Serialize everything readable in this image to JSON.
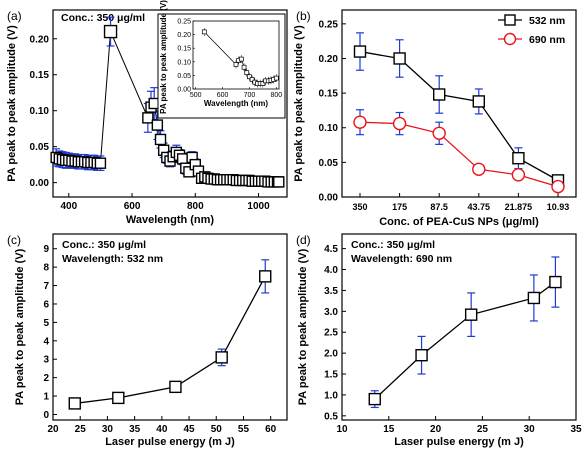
{
  "chart_data": [
    {
      "id": "a",
      "type": "scatter",
      "panel_label": "(a)",
      "annotation": "Conc.: 350 μg/ml",
      "xlabel": "Wavelength (nm)",
      "ylabel": "PA peak to peak amplitude (V)",
      "xlim": [
        350,
        1090
      ],
      "ylim": [
        -0.02,
        0.24
      ],
      "xticks": [
        400,
        600,
        800,
        1000
      ],
      "yticks": [
        0.0,
        0.05,
        0.1,
        0.15,
        0.2
      ],
      "xticklabels": [
        "400",
        "600",
        "800",
        "1000"
      ],
      "yticklabels": [
        "0.00",
        "0.05",
        "0.10",
        "0.15",
        "0.20"
      ],
      "x": [
        360,
        370,
        380,
        390,
        400,
        410,
        420,
        430,
        440,
        450,
        460,
        470,
        480,
        490,
        500,
        532,
        650,
        660,
        670,
        680,
        690,
        700,
        710,
        720,
        730,
        740,
        750,
        760,
        770,
        780,
        790,
        800,
        810,
        820,
        830,
        840,
        850,
        860,
        870,
        880,
        890,
        900,
        910,
        920,
        930,
        940,
        950,
        960,
        970,
        980,
        990,
        1000,
        1010,
        1020,
        1030,
        1040,
        1050,
        1060,
        1064
      ],
      "y": [
        0.035,
        0.033,
        0.032,
        0.031,
        0.031,
        0.03,
        0.03,
        0.029,
        0.029,
        0.029,
        0.028,
        0.028,
        0.028,
        0.027,
        0.027,
        0.21,
        0.09,
        0.105,
        0.11,
        0.08,
        0.06,
        0.045,
        0.035,
        0.03,
        0.036,
        0.042,
        0.038,
        0.033,
        0.02,
        0.015,
        0.035,
        0.025,
        0.016,
        0.006,
        0.008,
        0.006,
        0.005,
        0.005,
        0.004,
        0.004,
        0.004,
        0.004,
        0.004,
        0.004,
        0.003,
        0.003,
        0.003,
        0.003,
        0.003,
        0.002,
        0.002,
        0.002,
        0.002,
        0.002,
        0.001,
        0.001,
        0.001,
        0.001,
        0.001
      ],
      "err": [
        0.012,
        0.011,
        0.011,
        0.011,
        0.01,
        0.01,
        0.01,
        0.01,
        0.01,
        0.01,
        0.01,
        0.01,
        0.01,
        0.01,
        0.01,
        0.02,
        0.02,
        0.022,
        0.022,
        0.02,
        0.012,
        0.01,
        0.008,
        0.008,
        0.008,
        0.01,
        0.008,
        0.008,
        0.008,
        0.006,
        0.008,
        0.008,
        0.006,
        0.006,
        0.006,
        0.006,
        0.005,
        0.005,
        0.005,
        0.005,
        0.005,
        0.005,
        0.005,
        0.005,
        0.005,
        0.005,
        0.005,
        0.005,
        0.005,
        0.005,
        0.005,
        0.005,
        0.005,
        0.005,
        0.005,
        0.005,
        0.005,
        0.005,
        0.005
      ],
      "inset": {
        "xlabel": "Wavelength (nm)",
        "ylabel": "PA peak to peak amplitude (V)",
        "xlim": [
          490,
          810
        ],
        "ylim": [
          0.0,
          0.25
        ],
        "xticks": [
          500,
          600,
          700,
          800
        ],
        "yticks": [
          0.0,
          0.05,
          0.1,
          0.15,
          0.2,
          0.25
        ],
        "xticklabels": [
          "500",
          "600",
          "700",
          "800"
        ],
        "yticklabels": [
          "0.00",
          "0.05",
          "0.10",
          "0.15",
          "0.20",
          "0.25"
        ],
        "x": [
          532,
          650,
          660,
          670,
          680,
          690,
          700,
          710,
          720,
          730,
          740,
          750,
          760,
          770,
          780,
          790,
          800
        ],
        "y": [
          0.21,
          0.09,
          0.105,
          0.11,
          0.08,
          0.06,
          0.045,
          0.035,
          0.025,
          0.02,
          0.02,
          0.02,
          0.03,
          0.03,
          0.032,
          0.035,
          0.04
        ]
      }
    },
    {
      "id": "b",
      "type": "line",
      "panel_label": "(b)",
      "xlabel": "Conc. of PEA-CuS NPs (μg/ml)",
      "ylabel": "PA peak to peak amplitude (V)",
      "categories": [
        "350",
        "175",
        "87.5",
        "43.75",
        "21.875",
        "10.93"
      ],
      "ylim": [
        0.0,
        0.27
      ],
      "yticks": [
        0.0,
        0.05,
        0.1,
        0.15,
        0.2,
        0.25
      ],
      "yticklabels": [
        "0.00",
        "0.05",
        "0.10",
        "0.15",
        "0.20",
        "0.25"
      ],
      "legend_position": "top-right",
      "series": [
        {
          "name": "532 nm",
          "color": "#000000",
          "marker": "square",
          "values": [
            0.21,
            0.2,
            0.148,
            0.138,
            0.056,
            0.024
          ],
          "err": [
            0.027,
            0.027,
            0.027,
            0.018,
            0.015,
            0.005
          ]
        },
        {
          "name": "690 nm",
          "color": "#e8141b",
          "marker": "circle",
          "values": [
            0.108,
            0.106,
            0.092,
            0.04,
            0.032,
            0.015
          ],
          "err": [
            0.018,
            0.016,
            0.016,
            0.006,
            0.006,
            0.005
          ]
        }
      ]
    },
    {
      "id": "c",
      "type": "line",
      "panel_label": "(c)",
      "annotation": "Conc.: 350 μg/ml",
      "annotation2": "Wavelength: 532 nm",
      "xlabel": "Laser  pulse energy (m J)",
      "ylabel": "PA peak to peak amplitude (V)",
      "xlim": [
        20,
        63
      ],
      "ylim": [
        -0.3,
        9.8
      ],
      "xticks": [
        20,
        25,
        30,
        35,
        40,
        45,
        50,
        55,
        60
      ],
      "yticks": [
        0,
        1,
        2,
        3,
        4,
        5,
        6,
        7,
        8,
        9
      ],
      "xticklabels": [
        "20",
        "25",
        "30",
        "35",
        "40",
        "45",
        "50",
        "55",
        "60"
      ],
      "yticklabels": [
        "0",
        "1",
        "2",
        "3",
        "4",
        "5",
        "6",
        "7",
        "8",
        "9"
      ],
      "x": [
        24,
        32,
        42.5,
        51,
        59
      ],
      "y": [
        0.6,
        0.9,
        1.5,
        3.1,
        7.5
      ],
      "err": [
        0.2,
        0.25,
        0.25,
        0.45,
        0.9
      ]
    },
    {
      "id": "d",
      "type": "line",
      "panel_label": "(d)",
      "annotation": "Conc.: 350 μg/ml",
      "annotation2": "Wavelength: 690 nm",
      "xlabel": "Laser  pulse energy (m J)",
      "ylabel": "PA peak to peak amplitude (V)",
      "xlim": [
        10,
        35
      ],
      "ylim": [
        0.4,
        4.85
      ],
      "xticks": [
        10,
        15,
        20,
        25,
        30,
        35
      ],
      "yticks": [
        0.5,
        1.0,
        1.5,
        2.0,
        2.5,
        3.0,
        3.5,
        4.0,
        4.5
      ],
      "xticklabels": [
        "10",
        "15",
        "20",
        "25",
        "30",
        "35"
      ],
      "yticklabels": [
        "0.5",
        "1.0",
        "1.5",
        "2.0",
        "2.5",
        "3.0",
        "3.5",
        "4.0",
        "4.5"
      ],
      "x": [
        13.5,
        18.5,
        23.8,
        30.5,
        32.8
      ],
      "y": [
        0.9,
        1.95,
        2.92,
        3.32,
        3.7
      ],
      "err": [
        0.2,
        0.45,
        0.52,
        0.55,
        0.6
      ]
    }
  ]
}
